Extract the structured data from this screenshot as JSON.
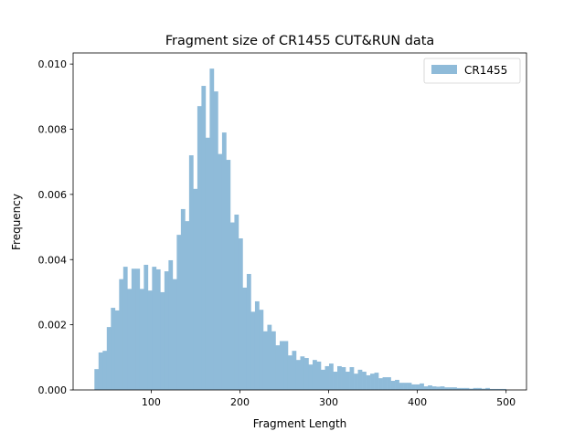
{
  "chart_data": {
    "type": "bar",
    "histogram": true,
    "title": "Fragment size of CR1455 CUT&RUN data",
    "xlabel": "Fragment Length",
    "ylabel": "Frequency",
    "xlim": [
      12,
      523
    ],
    "ylim": [
      0,
      0.01034
    ],
    "xticks": [
      100,
      200,
      300,
      400,
      500
    ],
    "xtick_labels": [
      "100",
      "200",
      "300",
      "400",
      "500"
    ],
    "yticks": [
      0,
      0.002,
      0.004,
      0.006,
      0.008,
      0.01
    ],
    "ytick_labels": [
      "0.000",
      "0.002",
      "0.004",
      "0.006",
      "0.008",
      "0.010"
    ],
    "grid": false,
    "legend_position": "top-right",
    "bin_range": [
      36,
      500
    ],
    "bin_count": 100,
    "series": [
      {
        "name": "CR1455",
        "color": "#8fbbd9",
        "values": [
          0.00064,
          0.00115,
          0.0012,
          0.00193,
          0.00252,
          0.00244,
          0.0034,
          0.00378,
          0.0031,
          0.00372,
          0.00372,
          0.0031,
          0.00384,
          0.00305,
          0.00378,
          0.0037,
          0.003,
          0.00364,
          0.00398,
          0.0034,
          0.00476,
          0.00555,
          0.00518,
          0.0072,
          0.00617,
          0.00871,
          0.00933,
          0.00774,
          0.00986,
          0.00916,
          0.00724,
          0.0079,
          0.00706,
          0.00514,
          0.00538,
          0.00465,
          0.00314,
          0.00356,
          0.0024,
          0.00272,
          0.00246,
          0.0018,
          0.002,
          0.0018,
          0.00137,
          0.0015,
          0.0015,
          0.00106,
          0.0012,
          0.00092,
          0.00103,
          0.00098,
          0.00078,
          0.00092,
          0.00087,
          0.00062,
          0.00073,
          0.00081,
          0.00056,
          0.00073,
          0.0007,
          0.00056,
          0.0007,
          0.0005,
          0.00062,
          0.00056,
          0.00045,
          0.0005,
          0.00053,
          0.00036,
          0.00039,
          0.00039,
          0.00028,
          0.00031,
          0.00022,
          0.00022,
          0.00022,
          0.00017,
          0.00017,
          0.0002,
          0.00011,
          0.00014,
          0.00011,
          0.0001,
          0.00011,
          8e-05,
          8e-05,
          8e-05,
          6e-05,
          6e-05,
          6e-05,
          4e-05,
          6e-05,
          6e-05,
          4e-05,
          6e-05,
          3e-05,
          3e-05,
          3e-05,
          3e-05
        ]
      }
    ]
  }
}
